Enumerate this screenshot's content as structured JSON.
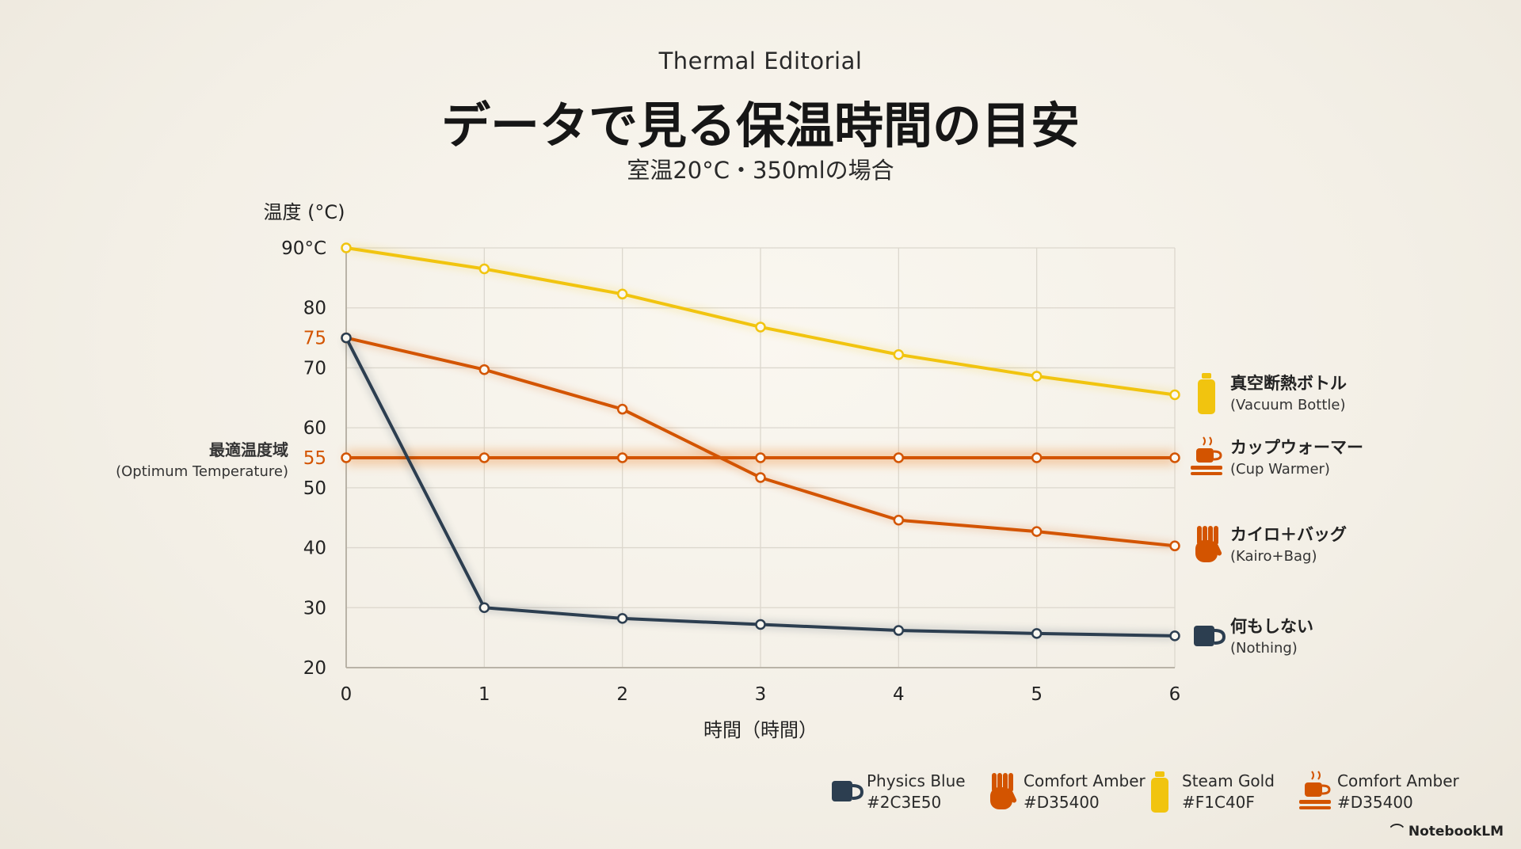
{
  "header": {
    "eyebrow": "Thermal Editorial",
    "title": "データで見る保温時間の目安",
    "subtitle": "室温20°C・350mlの場合"
  },
  "chart_data": {
    "type": "line",
    "ylabel": "温度 (°C)",
    "xlabel": "時間（時間）",
    "ylim": [
      20,
      90
    ],
    "xlim": [
      0,
      6
    ],
    "x": [
      0,
      1,
      2,
      3,
      4,
      5,
      6
    ],
    "x_ticks": [
      "0",
      "1",
      "2",
      "3",
      "4",
      "5",
      "6"
    ],
    "y_ticks": [
      {
        "value": 20,
        "label": "20"
      },
      {
        "value": 30,
        "label": "30"
      },
      {
        "value": 40,
        "label": "40"
      },
      {
        "value": 50,
        "label": "50"
      },
      {
        "value": 60,
        "label": "60"
      },
      {
        "value": 70,
        "label": "70"
      },
      {
        "value": 80,
        "label": "80"
      },
      {
        "value": 90,
        "label": "90°C"
      }
    ],
    "highlight_ticks": [
      {
        "value": 75,
        "label": "75",
        "color": "#D35400"
      },
      {
        "value": 55,
        "label": "55",
        "color": "#D35400"
      }
    ],
    "optimum_band": {
      "label": "最適温度域",
      "label_en": "(Optimum Temperature)",
      "value": 55
    },
    "grid": true,
    "legend_position": "right",
    "series": [
      {
        "name": "真空断熱ボトル",
        "name_en": "(Vacuum Bottle)",
        "icon": "bottle-icon",
        "color": "#F1C40F",
        "values": [
          90,
          86.5,
          82.3,
          76.8,
          72.2,
          68.6,
          65.5
        ]
      },
      {
        "name": "カップウォーマー",
        "name_en": "(Cup Warmer)",
        "icon": "warmer-cup-icon",
        "color": "#D35400",
        "values": [
          55,
          55,
          55,
          55,
          55,
          55,
          55
        ]
      },
      {
        "name": "カイロ＋バッグ",
        "name_en": "(Kairo+Bag)",
        "icon": "hand-icon",
        "color": "#D35400",
        "values": [
          75,
          69.7,
          63.1,
          51.7,
          44.6,
          42.7,
          40.3
        ]
      },
      {
        "name": "何もしない",
        "name_en": "(Nothing)",
        "icon": "mug-icon",
        "color": "#2C3E50",
        "values": [
          75,
          30,
          28.2,
          27.2,
          26.2,
          25.7,
          25.3
        ]
      }
    ]
  },
  "swatches": [
    {
      "name": "Physics Blue",
      "hex": "#2C3E50",
      "icon": "mug-icon"
    },
    {
      "name": "Comfort Amber",
      "hex": "#D35400",
      "icon": "hand-icon"
    },
    {
      "name": "Steam Gold",
      "hex": "#F1C40F",
      "icon": "bottle-icon"
    },
    {
      "name": "Comfort Amber",
      "hex": "#D35400",
      "icon": "warmer-cup-icon"
    }
  ],
  "brand": "NotebookLM"
}
